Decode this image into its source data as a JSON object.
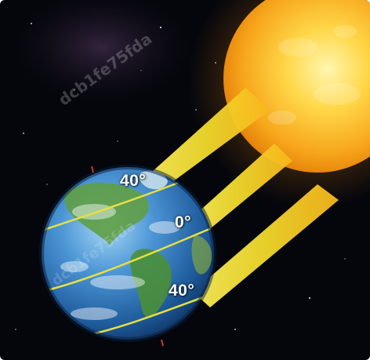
{
  "labels": {
    "lat_north": "40°",
    "lat_equator": "0°",
    "lat_south": "40°"
  },
  "watermarks": [
    "dcb1fe75fda",
    "dcb1fe75fda"
  ],
  "colors": {
    "space": "#05060c",
    "sun_core": "#ffe27a",
    "sun_edge": "#f59a0c",
    "sunbeam": "#f3e23a",
    "ocean": "#2d78c4",
    "land": "#4f9a3a",
    "latitude_line": "#e6e040"
  }
}
